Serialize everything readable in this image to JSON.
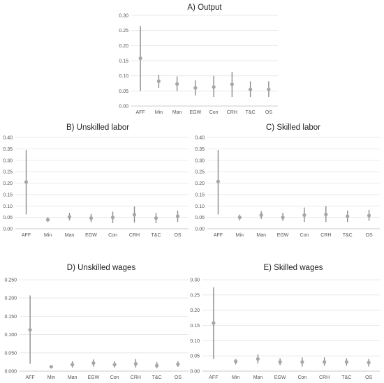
{
  "colors": {
    "range_line": "#8c8c8c",
    "point": "#a6a6a6",
    "grid": "#e3e3e3"
  },
  "chart_data": [
    {
      "type": "scatter",
      "title": "A) Output",
      "categories": [
        "AFF",
        "Min",
        "Man",
        "EGW",
        "Con",
        "CRH",
        "T&C",
        "OS"
      ],
      "y_ticks": [
        "0.00",
        "0.05",
        "0.10",
        "0.15",
        "0.20",
        "0.25",
        "0.30"
      ],
      "ylim": [
        0,
        0.3
      ],
      "grid": true,
      "series": [
        {
          "values": [
            0.158,
            0.082,
            0.073,
            0.06,
            0.063,
            0.072,
            0.055,
            0.055
          ],
          "low": [
            0.05,
            0.06,
            0.05,
            0.035,
            0.03,
            0.03,
            0.03,
            0.03
          ],
          "high": [
            0.265,
            0.103,
            0.098,
            0.085,
            0.1,
            0.113,
            0.082,
            0.082
          ]
        }
      ]
    },
    {
      "type": "scatter",
      "title": "B) Unskilled labor",
      "categories": [
        "AFF",
        "Min",
        "Man",
        "EGW",
        "Con",
        "CRH",
        "T&C",
        "OS"
      ],
      "y_ticks": [
        "0.00",
        "0.05",
        "0.10",
        "0.15",
        "0.20",
        "0.25",
        "0.30",
        "0.35",
        "0.40"
      ],
      "ylim": [
        0,
        0.4
      ],
      "grid": true,
      "series": [
        {
          "values": [
            0.205,
            0.04,
            0.052,
            0.047,
            0.05,
            0.062,
            0.047,
            0.055
          ],
          "low": [
            0.063,
            0.03,
            0.037,
            0.03,
            0.025,
            0.028,
            0.025,
            0.03
          ],
          "high": [
            0.345,
            0.05,
            0.07,
            0.065,
            0.075,
            0.098,
            0.07,
            0.08
          ]
        }
      ]
    },
    {
      "type": "scatter",
      "title": "C) Skilled labor",
      "categories": [
        "AFF",
        "Min",
        "Man",
        "EGW",
        "Con",
        "CRH",
        "T&C",
        "OS"
      ],
      "y_ticks": [
        "0.00",
        "0.05",
        "0.10",
        "0.15",
        "0.20",
        "0.25",
        "0.30",
        "0.35",
        "0.40"
      ],
      "ylim": [
        0,
        0.4
      ],
      "grid": true,
      "series": [
        {
          "values": [
            0.207,
            0.05,
            0.06,
            0.05,
            0.06,
            0.063,
            0.055,
            0.058
          ],
          "low": [
            0.063,
            0.038,
            0.043,
            0.035,
            0.03,
            0.03,
            0.03,
            0.035
          ],
          "high": [
            0.345,
            0.062,
            0.077,
            0.07,
            0.093,
            0.1,
            0.08,
            0.083
          ]
        }
      ]
    },
    {
      "type": "scatter",
      "title": "D) Unskilled wages",
      "categories": [
        "AFF",
        "Min",
        "Man",
        "EGW",
        "Con",
        "CRH",
        "T&C",
        "OS"
      ],
      "y_ticks": [
        "0.000",
        "0.050",
        "0.100",
        "0.150",
        "0.200",
        "0.250"
      ],
      "ylim": [
        0,
        0.25
      ],
      "grid": true,
      "series": [
        {
          "values": [
            0.113,
            0.012,
            0.018,
            0.022,
            0.018,
            0.02,
            0.015,
            0.019
          ],
          "low": [
            0.02,
            0.009,
            0.01,
            0.012,
            0.01,
            0.01,
            0.008,
            0.012
          ],
          "high": [
            0.207,
            0.014,
            0.027,
            0.032,
            0.027,
            0.033,
            0.025,
            0.027
          ]
        }
      ]
    },
    {
      "type": "scatter",
      "title": "E) Skilled wages",
      "categories": [
        "AFF",
        "Min",
        "Man",
        "EGW",
        "Con",
        "CRH",
        "T&C",
        "OS"
      ],
      "y_ticks": [
        "0.00",
        "0.05",
        "0.10",
        "0.15",
        "0.20",
        "0.25",
        "0.30"
      ],
      "ylim": [
        0,
        0.3
      ],
      "grid": true,
      "series": [
        {
          "values": [
            0.158,
            0.032,
            0.04,
            0.03,
            0.03,
            0.03,
            0.03,
            0.028
          ],
          "low": [
            0.04,
            0.022,
            0.025,
            0.02,
            0.015,
            0.018,
            0.018,
            0.015
          ],
          "high": [
            0.275,
            0.04,
            0.055,
            0.042,
            0.045,
            0.045,
            0.042,
            0.04
          ]
        }
      ]
    }
  ]
}
